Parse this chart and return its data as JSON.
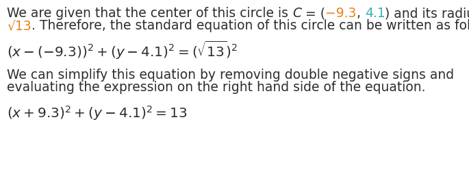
{
  "bg_color": "#ffffff",
  "black": "#2d2d2d",
  "orange": "#e8821a",
  "teal": "#3ab0b0",
  "fs_text": 13.5,
  "fs_formula": 14.5,
  "fig_w": 6.85,
  "fig_h": 2.83,
  "dpi": 100,
  "line1_segments": [
    [
      "We are given that the center of this circle is ",
      "black",
      "normal"
    ],
    [
      "C",
      "black",
      "italic"
    ],
    [
      " = (",
      "black",
      "normal"
    ],
    [
      "−9.3",
      "orange",
      "normal"
    ],
    [
      ", ",
      "black",
      "normal"
    ],
    [
      "4.1",
      "teal",
      "normal"
    ],
    [
      ") and its radius is",
      "black",
      "normal"
    ]
  ],
  "line2_segments": [
    [
      "√13",
      "orange",
      "normal"
    ],
    [
      ". Therefore, the standard equation of this circle can be written as follows.",
      "black",
      "normal"
    ]
  ],
  "formula1": "$(x - (-9.3))^2 + (y - 4.1)^2 = (\\sqrt{13})^2$",
  "text3": "We can simplify this equation by removing double negative signs and",
  "text4": "evaluating the expression on the right hand side of the equation.",
  "formula2": "$(x + 9.3)^2 + (y - 4.1)^2 = 13$"
}
